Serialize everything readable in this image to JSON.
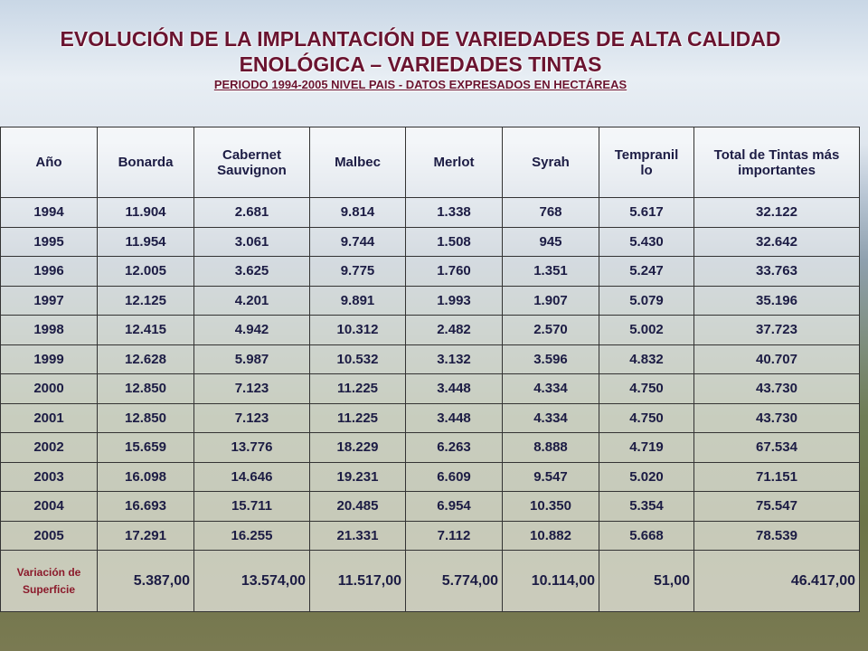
{
  "header": {
    "title_line1": "EVOLUCIÓN DE LA IMPLANTACIÓN DE VARIEDADES DE ALTA CALIDAD",
    "title_line2": "ENOLÓGICA – VARIEDADES TINTAS",
    "subtitle": "PERIODO 1994-2005 NIVEL PAIS - DATOS EXPRESADOS EN HECTÁREAS"
  },
  "table": {
    "columns": [
      "Año",
      "Bonarda",
      "Cabernet Sauvignon",
      "Malbec",
      "Merlot",
      "Syrah",
      "Tempranillo",
      "Total de Tintas más importantes"
    ],
    "rows": [
      [
        "1994",
        "11.904",
        "2.681",
        "9.814",
        "1.338",
        "768",
        "5.617",
        "32.122"
      ],
      [
        "1995",
        "11.954",
        "3.061",
        "9.744",
        "1.508",
        "945",
        "5.430",
        "32.642"
      ],
      [
        "1996",
        "12.005",
        "3.625",
        "9.775",
        "1.760",
        "1.351",
        "5.247",
        "33.763"
      ],
      [
        "1997",
        "12.125",
        "4.201",
        "9.891",
        "1.993",
        "1.907",
        "5.079",
        "35.196"
      ],
      [
        "1998",
        "12.415",
        "4.942",
        "10.312",
        "2.482",
        "2.570",
        "5.002",
        "37.723"
      ],
      [
        "1999",
        "12.628",
        "5.987",
        "10.532",
        "3.132",
        "3.596",
        "4.832",
        "40.707"
      ],
      [
        "2000",
        "12.850",
        "7.123",
        "11.225",
        "3.448",
        "4.334",
        "4.750",
        "43.730"
      ],
      [
        "2001",
        "12.850",
        "7.123",
        "11.225",
        "3.448",
        "4.334",
        "4.750",
        "43.730"
      ],
      [
        "2002",
        "15.659",
        "13.776",
        "18.229",
        "6.263",
        "8.888",
        "4.719",
        "67.534"
      ],
      [
        "2003",
        "16.098",
        "14.646",
        "19.231",
        "6.609",
        "9.547",
        "5.020",
        "71.151"
      ],
      [
        "2004",
        "16.693",
        "15.711",
        "20.485",
        "6.954",
        "10.350",
        "5.354",
        "75.547"
      ],
      [
        "2005",
        "17.291",
        "16.255",
        "21.331",
        "7.112",
        "10.882",
        "5.668",
        "78.539"
      ]
    ],
    "footer_row": [
      "Variación de Superficie",
      "5.387,00",
      "13.574,00",
      "11.517,00",
      "5.774,00",
      "10.114,00",
      "51,00",
      "46.417,00"
    ]
  }
}
